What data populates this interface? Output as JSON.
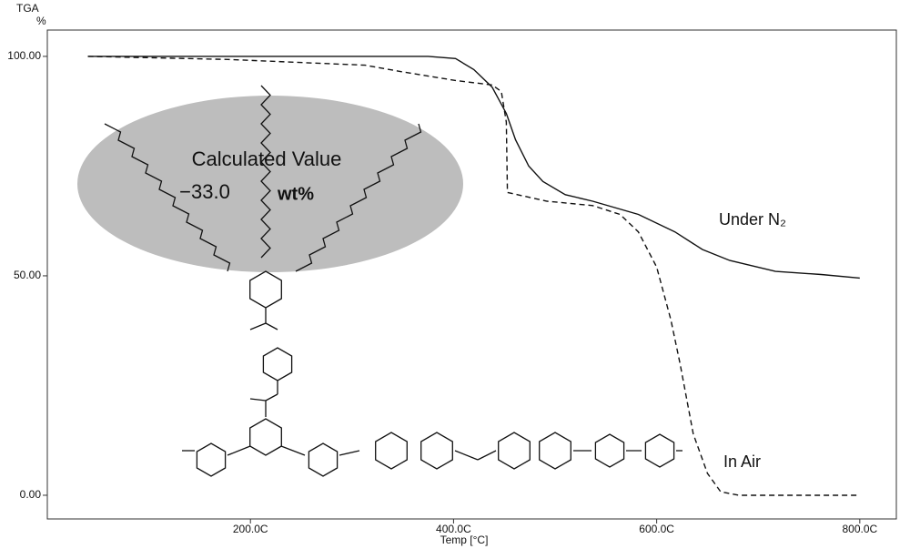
{
  "chart_data": {
    "type": "line",
    "y_label": "TGA",
    "y_unit": "%",
    "x_label": "Temp [°C]",
    "xlim": [
      0,
      836
    ],
    "ylim": [
      -5.4,
      106
    ],
    "xticks": [
      {
        "value": 200,
        "label": "200.0C"
      },
      {
        "value": 400,
        "label": "400.0C"
      },
      {
        "value": 600,
        "label": "600.0C"
      },
      {
        "value": 800,
        "label": "800.0C"
      }
    ],
    "yticks": [
      {
        "value": 0,
        "label": "0.00"
      },
      {
        "value": 50,
        "label": "50.00"
      },
      {
        "value": 100,
        "label": "100.00"
      }
    ],
    "grid": false,
    "series": [
      {
        "name": "Under N₂",
        "color": "#111111",
        "dash": "solid",
        "x": [
          40,
          200,
          375,
          402,
          420,
          438,
          452,
          461,
          474,
          488,
          510,
          537,
          582,
          618,
          645,
          672,
          717,
          762,
          800
        ],
        "values": [
          100,
          100,
          100,
          99.5,
          97,
          93,
          87,
          81,
          75,
          71.5,
          68.5,
          67,
          64,
          60,
          56,
          53.5,
          51,
          50.3,
          49.5
        ]
      },
      {
        "name": "In Air",
        "color": "#111111",
        "dash": "dashed",
        "x": [
          40,
          178,
          313,
          349,
          402,
          438,
          447,
          452,
          453,
          492,
          537,
          564,
          582,
          600,
          614,
          623,
          636,
          650,
          663,
          681,
          800
        ],
        "values": [
          100,
          99.3,
          98,
          96.5,
          94.5,
          93.5,
          92,
          85,
          69,
          67,
          66,
          64,
          60,
          52,
          40,
          30,
          14,
          5,
          0.8,
          0,
          0
        ]
      }
    ],
    "annotations": {
      "calculated": "Calculated Value",
      "value": "−33.0",
      "unit": "wt%"
    }
  }
}
